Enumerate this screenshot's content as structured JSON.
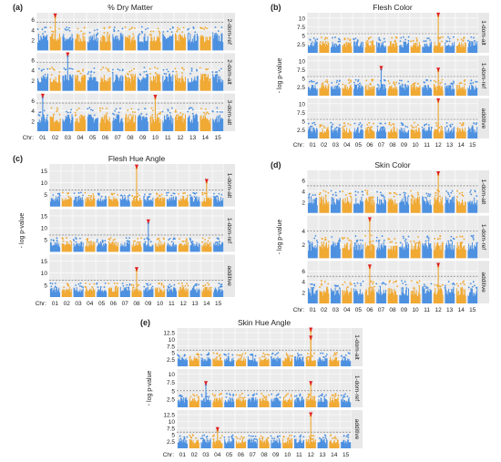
{
  "colors": {
    "odd_chr": "#4a8fe0",
    "even_chr": "#f0a830",
    "strip_bg": "#e8e8e8",
    "plot_bg": "#f2f2f2",
    "grid": "#ffffff",
    "threshold": "#666666",
    "arrow": "#e02020"
  },
  "chart_data": [
    {
      "type": "manhattan",
      "letter": "(a)",
      "title": "% Dry Matter",
      "ylabel": "",
      "xlabel": "Chr:",
      "x_categories": [
        "01",
        "02",
        "03",
        "04",
        "05",
        "06",
        "07",
        "08",
        "09",
        "10",
        "11",
        "12",
        "13",
        "14",
        "15"
      ],
      "panels": [
        {
          "model": "2-dom-ref",
          "yticks": [
            "2",
            "4",
            "6"
          ],
          "ylim": [
            0,
            7
          ],
          "threshold": 5.5,
          "peaks": [
            {
              "chr": "02",
              "y": 6.5,
              "arrow": true
            }
          ]
        },
        {
          "model": "2-dom-alt",
          "yticks": [
            "2",
            "4",
            "6"
          ],
          "ylim": [
            0,
            7
          ],
          "threshold": 5.5,
          "peaks": [
            {
              "chr": "03",
              "y": 6.8,
              "arrow": true
            }
          ]
        },
        {
          "model": "3-dom-alt",
          "yticks": [
            "2",
            "4",
            "6"
          ],
          "ylim": [
            0,
            7
          ],
          "threshold": 5.5,
          "peaks": [
            {
              "chr": "01",
              "y": 6.6,
              "arrow": true
            },
            {
              "chr": "10",
              "y": 6.4,
              "arrow": true
            }
          ]
        }
      ]
    },
    {
      "type": "manhattan",
      "letter": "(b)",
      "title": "Flesh Color",
      "ylabel": "- log p-value",
      "xlabel": "Chr:",
      "x_categories": [
        "01",
        "02",
        "03",
        "04",
        "05",
        "06",
        "07",
        "08",
        "09",
        "10",
        "11",
        "12",
        "13",
        "14",
        "15"
      ],
      "panels": [
        {
          "model": "1-dom-alt",
          "yticks": [
            "2.5",
            "5",
            "7.5",
            "10"
          ],
          "ylim": [
            0,
            11
          ],
          "threshold": 5.5,
          "peaks": [
            {
              "chr": "12",
              "y": 10.5,
              "arrow": true
            }
          ]
        },
        {
          "model": "1-dom-ref",
          "yticks": [
            "2.5",
            "5",
            "7.5",
            "10"
          ],
          "ylim": [
            0,
            11
          ],
          "threshold": 5.5,
          "peaks": [
            {
              "chr": "07",
              "y": 7.5,
              "arrow": true
            },
            {
              "chr": "12",
              "y": 7.0,
              "arrow": true
            }
          ]
        },
        {
          "model": "additive",
          "yticks": [
            "2.5",
            "5",
            "7.5",
            "10"
          ],
          "ylim": [
            0,
            11
          ],
          "threshold": 5.5,
          "peaks": [
            {
              "chr": "12",
              "y": 10.5,
              "arrow": true
            }
          ]
        }
      ]
    },
    {
      "type": "manhattan",
      "letter": "(c)",
      "title": "Flesh Hue Angle",
      "ylabel": "- log p-value",
      "xlabel": "Chr:",
      "x_categories": [
        "01",
        "02",
        "03",
        "04",
        "05",
        "06",
        "07",
        "08",
        "09",
        "10",
        "11",
        "12",
        "13",
        "14",
        "15"
      ],
      "panels": [
        {
          "model": "1-dom-alt",
          "yticks": [
            "5",
            "10",
            "15"
          ],
          "ylim": [
            0,
            17
          ],
          "threshold": 7,
          "peaks": [
            {
              "chr": "08",
              "y": 16,
              "arrow": true
            },
            {
              "chr": "14",
              "y": 10,
              "arrow": true
            }
          ]
        },
        {
          "model": "1-dom-ref",
          "yticks": [
            "5",
            "10",
            "15"
          ],
          "ylim": [
            0,
            17
          ],
          "threshold": 7,
          "peaks": [
            {
              "chr": "09",
              "y": 12,
              "arrow": true
            }
          ]
        },
        {
          "model": "additive",
          "yticks": [
            "5",
            "10",
            "15"
          ],
          "ylim": [
            0,
            17
          ],
          "threshold": 7,
          "peaks": [
            {
              "chr": "08",
              "y": 11,
              "arrow": true
            }
          ]
        }
      ]
    },
    {
      "type": "manhattan",
      "letter": "(d)",
      "title": "Skin Color",
      "ylabel": "- log p-value",
      "xlabel": "Chr:",
      "x_categories": [
        "01",
        "02",
        "03",
        "04",
        "05",
        "06",
        "07",
        "08",
        "09",
        "10",
        "11",
        "12",
        "13",
        "14",
        "15"
      ],
      "panels": [
        {
          "model": "1-dom-alt",
          "yticks": [
            "2",
            "4",
            "6"
          ],
          "ylim": [
            0,
            7.5
          ],
          "threshold": 5,
          "peaks": [
            {
              "chr": "12",
              "y": 7,
              "arrow": true
            }
          ]
        },
        {
          "model": "1-dom-ref",
          "yticks": [
            "2",
            "4"
          ],
          "ylim": [
            0,
            6
          ],
          "threshold": 4,
          "peaks": [
            {
              "chr": "06",
              "y": 5.5,
              "arrow": true
            }
          ]
        },
        {
          "model": "additive",
          "yticks": [
            "2",
            "4",
            "6"
          ],
          "ylim": [
            0,
            7.5
          ],
          "threshold": 5,
          "peaks": [
            {
              "chr": "06",
              "y": 6.5,
              "arrow": true
            },
            {
              "chr": "12",
              "y": 6.8,
              "arrow": true
            }
          ]
        }
      ]
    },
    {
      "type": "manhattan",
      "letter": "(e)",
      "title": "Skin Hue Angle",
      "ylabel": "- log p-value",
      "xlabel": "Chr:",
      "x_categories": [
        "01",
        "02",
        "03",
        "04",
        "05",
        "06",
        "07",
        "08",
        "09",
        "10",
        "11",
        "12",
        "13",
        "14",
        "15"
      ],
      "panels": [
        {
          "model": "1-dom-alt",
          "yticks": [
            "2.5",
            "5",
            "7.5",
            "10",
            "12.5"
          ],
          "ylim": [
            0,
            13.5
          ],
          "threshold": 6,
          "peaks": [
            {
              "chr": "12",
              "y": 13,
              "arrow": true
            },
            {
              "chr": "12",
              "y": 10,
              "arrow": true
            }
          ]
        },
        {
          "model": "1-dom-ref",
          "yticks": [
            "2.5",
            "5",
            "7.5",
            "10"
          ],
          "ylim": [
            0,
            11
          ],
          "threshold": 5,
          "peaks": [
            {
              "chr": "03",
              "y": 6.8,
              "arrow": true
            },
            {
              "chr": "12",
              "y": 6.8,
              "arrow": true
            }
          ]
        },
        {
          "model": "additive",
          "yticks": [
            "2.5",
            "5",
            "7.5",
            "10",
            "12.5"
          ],
          "ylim": [
            0,
            13.5
          ],
          "threshold": 6,
          "peaks": [
            {
              "chr": "04",
              "y": 6.5,
              "arrow": true
            },
            {
              "chr": "12",
              "y": 12,
              "arrow": true
            }
          ]
        }
      ]
    }
  ]
}
